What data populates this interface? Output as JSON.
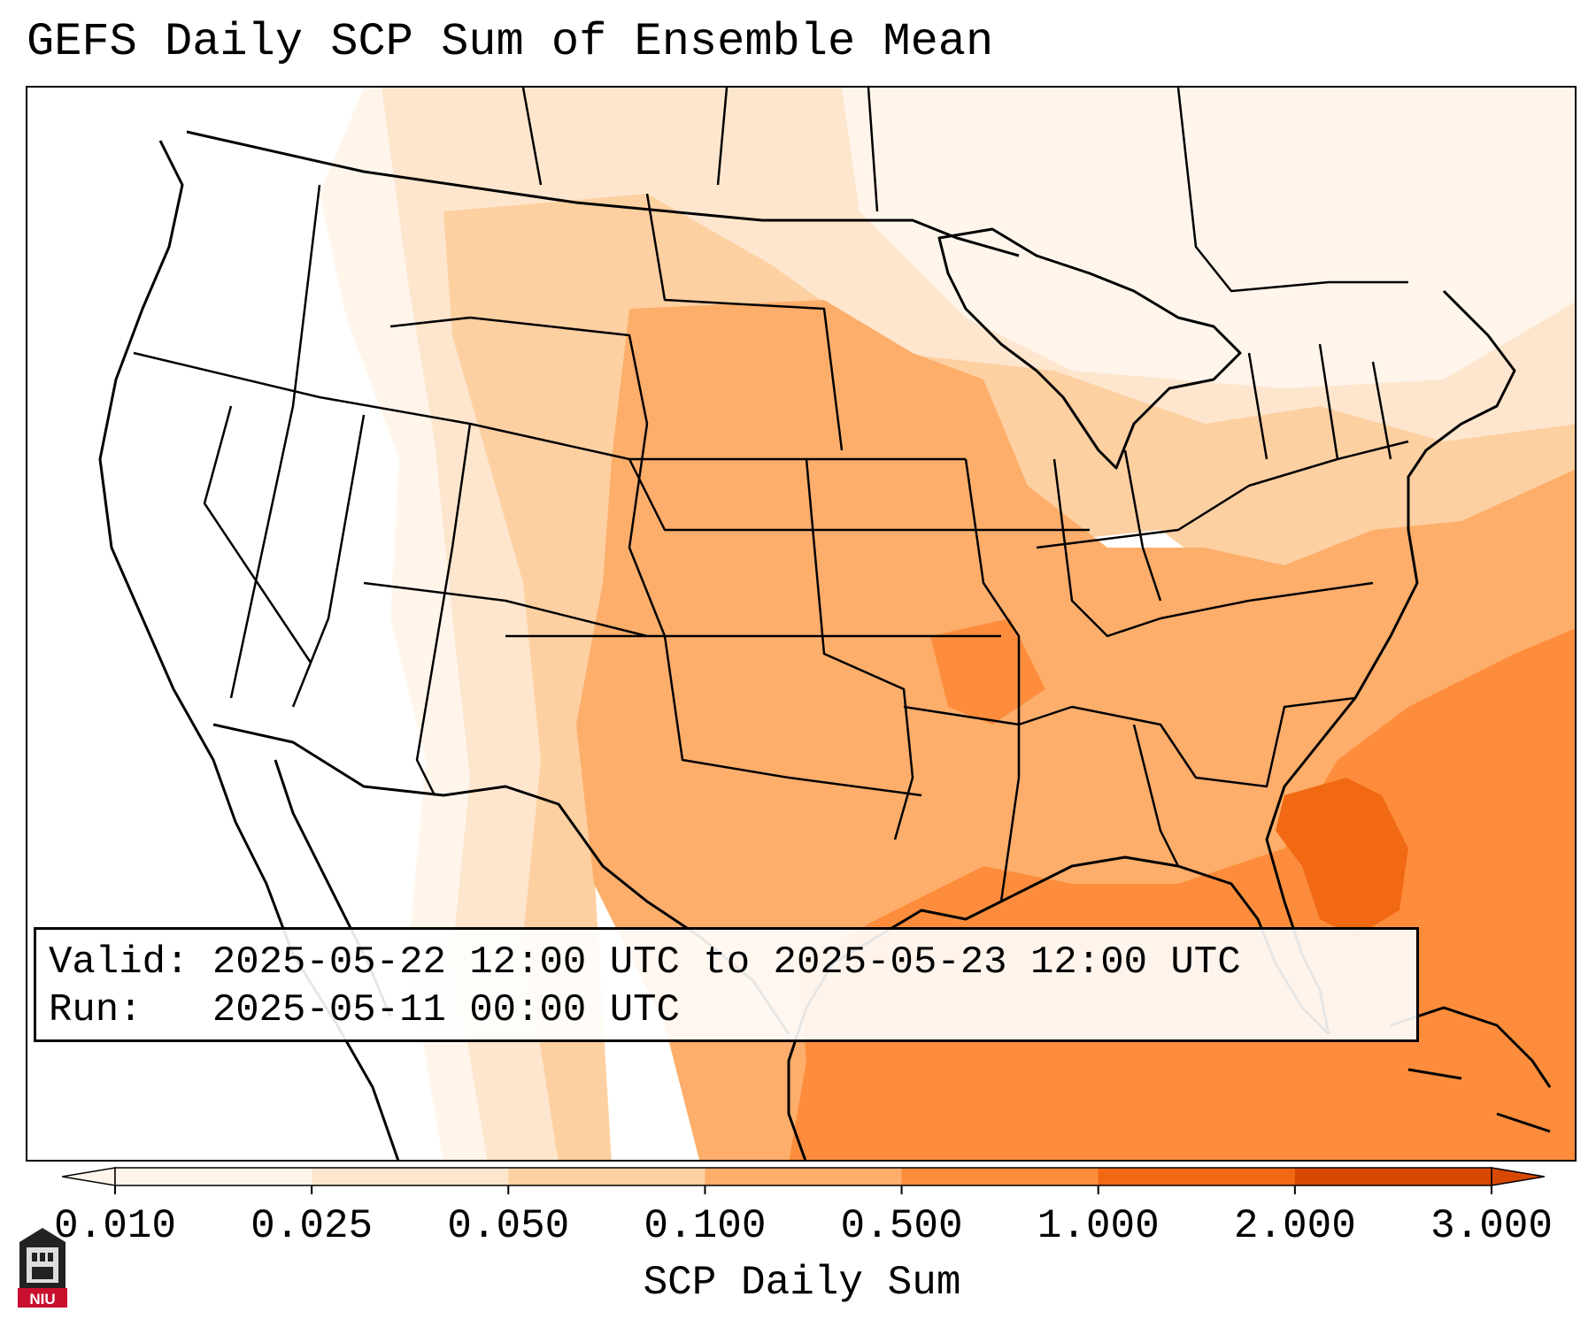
{
  "title": "GEFS Daily SCP Sum of Ensemble Mean",
  "info": {
    "valid": "Valid: 2025-05-22 12:00 UTC to 2025-05-23 12:00 UTC",
    "run": "Run:   2025-05-11 00:00 UTC"
  },
  "colorbar": {
    "label": "SCP Daily Sum",
    "ticks": [
      "0.010",
      "0.025",
      "0.050",
      "0.100",
      "0.500",
      "1.000",
      "2.000",
      "3.000"
    ],
    "colors": [
      "#fff5eb",
      "#fee6ce",
      "#fdd0a2",
      "#fdae6b",
      "#fd8d3c",
      "#f16913",
      "#d94801"
    ],
    "extend": "both"
  },
  "logo": {
    "text": "NIU"
  },
  "map_fill": {
    "levels": [
      "0.010",
      "0.025",
      "0.050",
      "0.100",
      "0.500",
      "1.000"
    ],
    "colors": [
      "#fff5eb",
      "#fee6ce",
      "#fdd0a2",
      "#fdae6b",
      "#fd8d3c",
      "#f16913"
    ]
  }
}
